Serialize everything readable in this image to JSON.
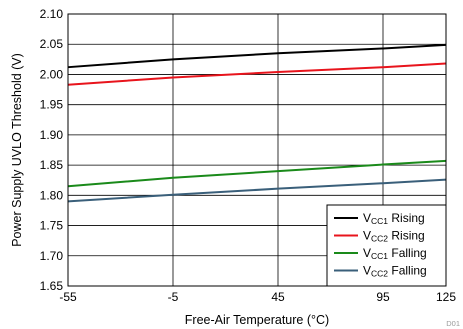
{
  "chart_data": {
    "type": "line",
    "xlabel": "Free-Air Temperature (°C)",
    "ylabel": "Power Supply UVLO Threshold (V)",
    "xlim": [
      -55,
      125
    ],
    "ylim": [
      1.65,
      2.1
    ],
    "x_ticks": [
      -55,
      -5,
      45,
      95,
      125
    ],
    "x_tick_labels": [
      "-55",
      "-5",
      "45",
      "95",
      "125"
    ],
    "y_ticks": [
      1.65,
      1.7,
      1.75,
      1.8,
      1.85,
      1.9,
      1.95,
      2.0,
      2.05,
      2.1
    ],
    "y_tick_labels": [
      "1.65",
      "1.70",
      "1.75",
      "1.80",
      "1.85",
      "1.90",
      "1.95",
      "2.00",
      "2.05",
      "2.10"
    ],
    "grid": true,
    "legend_position": "bottom-right",
    "figure_id": "D01",
    "series": [
      {
        "name": "VCC1 Rising",
        "name_main": "V",
        "name_sub": "CC1",
        "name_rest": " Rising",
        "color": "#000000",
        "x": [
          -55,
          -5,
          45,
          95,
          125
        ],
        "y": [
          2.012,
          2.025,
          2.035,
          2.043,
          2.049
        ]
      },
      {
        "name": "VCC2 Rising",
        "name_main": "V",
        "name_sub": "CC2",
        "name_rest": " Rising",
        "color": "#e8141c",
        "x": [
          -55,
          -5,
          45,
          95,
          125
        ],
        "y": [
          1.983,
          1.995,
          2.004,
          2.012,
          2.018
        ]
      },
      {
        "name": "VCC1 Falling",
        "name_main": "V",
        "name_sub": "CC1",
        "name_rest": " Falling",
        "color": "#1a8a1a",
        "x": [
          -55,
          -5,
          45,
          95,
          125
        ],
        "y": [
          1.815,
          1.829,
          1.84,
          1.851,
          1.857
        ]
      },
      {
        "name": "VCC2 Falling",
        "name_main": "V",
        "name_sub": "CC2",
        "name_rest": " Falling",
        "color": "#3a5f7a",
        "x": [
          -55,
          -5,
          45,
          95,
          125
        ],
        "y": [
          1.79,
          1.801,
          1.811,
          1.82,
          1.826
        ]
      }
    ]
  }
}
